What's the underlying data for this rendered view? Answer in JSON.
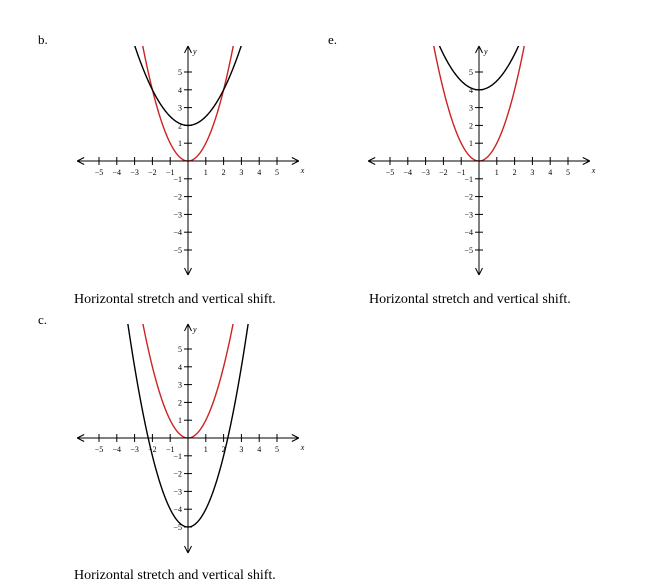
{
  "chart_data": [
    {
      "type": "line",
      "panel_label": "b.",
      "caption": "Horizontal stretch and vertical shift.",
      "xlabel": "x",
      "ylabel": "y",
      "x_ticks": [
        -5,
        -4,
        -3,
        -2,
        -1,
        1,
        2,
        3,
        4,
        5
      ],
      "y_ticks": [
        -5,
        -4,
        -3,
        -2,
        -1,
        1,
        2,
        3,
        4,
        5
      ],
      "xlim": [
        -6,
        6
      ],
      "ylim": [
        -6,
        6
      ],
      "series": [
        {
          "color": "#cc2222",
          "formula": "y = x^2",
          "a": 1,
          "k": 0
        },
        {
          "color": "#000000",
          "formula": "y = x^2/2 + 2",
          "a": 0.5,
          "k": 2
        }
      ]
    },
    {
      "type": "line",
      "panel_label": "e.",
      "caption": "Horizontal stretch and vertical shift.",
      "xlabel": "x",
      "ylabel": "y",
      "x_ticks": [
        -5,
        -4,
        -3,
        -2,
        -1,
        1,
        2,
        3,
        4,
        5
      ],
      "y_ticks": [
        -5,
        -4,
        -3,
        -2,
        -1,
        1,
        2,
        3,
        4,
        5
      ],
      "xlim": [
        -6,
        6
      ],
      "ylim": [
        -6,
        6
      ],
      "series": [
        {
          "color": "#cc2222",
          "formula": "y = x^2",
          "a": 1,
          "k": 0
        },
        {
          "color": "#000000",
          "formula": "y = x^2/2 + 4",
          "a": 0.5,
          "k": 4
        }
      ]
    },
    {
      "type": "line",
      "panel_label": "c.",
      "caption": "Horizontal stretch and vertical shift.",
      "xlabel": "x",
      "ylabel": "y",
      "x_ticks": [
        -5,
        -4,
        -3,
        -2,
        -1,
        1,
        2,
        3,
        4,
        5
      ],
      "y_ticks": [
        -5,
        -4,
        -3,
        -2,
        -1,
        1,
        2,
        3,
        4,
        5
      ],
      "xlim": [
        -6,
        6
      ],
      "ylim": [
        -6,
        6
      ],
      "series": [
        {
          "color": "#cc2222",
          "formula": "y = x^2",
          "a": 1,
          "k": 0
        },
        {
          "color": "#000000",
          "formula": "y = x^2 - 5",
          "a": 1,
          "k": -5
        }
      ]
    }
  ]
}
